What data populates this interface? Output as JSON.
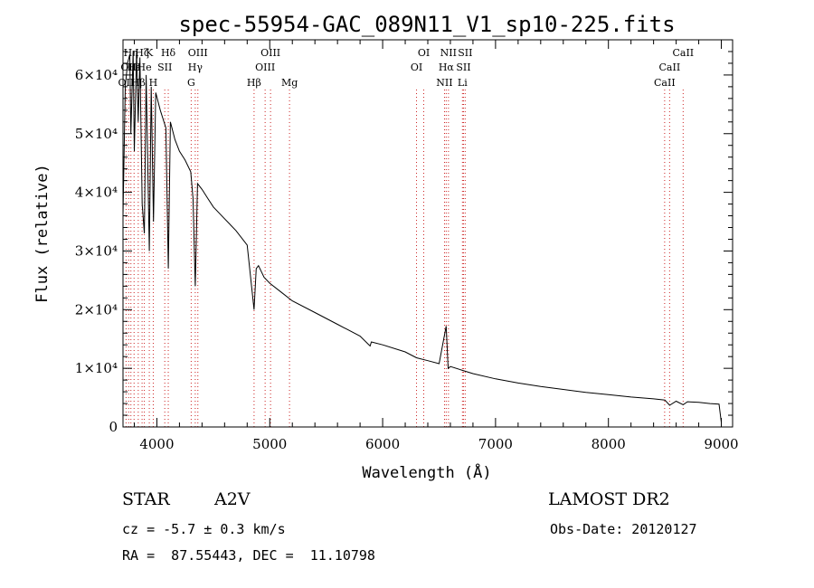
{
  "chart_data": {
    "type": "line",
    "title": "spec-55954-GAC_089N11_V1_sp10-225.fits",
    "xlabel": "Wavelength (Å)",
    "ylabel": "Flux (relative)",
    "xlim": [
      3700,
      9100
    ],
    "ylim": [
      0,
      66000
    ],
    "x_ticks": [
      4000,
      5000,
      6000,
      7000,
      8000,
      9000
    ],
    "y_ticks": [
      {
        "value": 0,
        "label": "0"
      },
      {
        "value": 10000,
        "label": "1×10⁴"
      },
      {
        "value": 20000,
        "label": "2×10⁴"
      },
      {
        "value": 30000,
        "label": "3×10⁴"
      },
      {
        "value": 40000,
        "label": "4×10⁴"
      },
      {
        "value": 50000,
        "label": "5×10⁴"
      },
      {
        "value": 60000,
        "label": "6×10⁴"
      }
    ],
    "grid": false,
    "series": [
      {
        "x": [
          3700,
          3720,
          3740,
          3760,
          3770,
          3790,
          3800,
          3820,
          3835,
          3850,
          3870,
          3889,
          3905,
          3933,
          3950,
          3970,
          3990,
          4030,
          4080,
          4101,
          4120,
          4160,
          4200,
          4250,
          4300,
          4320,
          4340,
          4360,
          4400,
          4450,
          4500,
          4600,
          4700,
          4800,
          4861,
          4880,
          4900,
          4950,
          5000,
          5100,
          5200,
          5400,
          5600,
          5800,
          5889,
          5900,
          6000,
          6200,
          6300,
          6400,
          6500,
          6563,
          6580,
          6600,
          6700,
          6800,
          7000,
          7200,
          7400,
          7600,
          7800,
          8000,
          8200,
          8400,
          8500,
          8542,
          8600,
          8662,
          8700,
          8800,
          8900,
          8980,
          9000
        ],
        "y": [
          36000,
          58000,
          62000,
          63500,
          50000,
          64000,
          47000,
          64000,
          52000,
          63000,
          38000,
          33000,
          60000,
          30000,
          58000,
          35000,
          57000,
          54000,
          51000,
          27000,
          52000,
          49000,
          47000,
          45500,
          43500,
          39000,
          24000,
          41500,
          40500,
          39000,
          37500,
          35500,
          33500,
          31000,
          20000,
          27000,
          27500,
          25500,
          24500,
          23000,
          21500,
          19500,
          17500,
          15500,
          13800,
          14500,
          14000,
          12800,
          11800,
          11300,
          10800,
          17200,
          10000,
          10300,
          9700,
          9100,
          8200,
          7500,
          6900,
          6400,
          5900,
          5500,
          5100,
          4800,
          4600,
          3700,
          4400,
          3800,
          4300,
          4200,
          4000,
          3900,
          800
        ]
      }
    ],
    "line_markers": [
      {
        "wave": 3727,
        "label": "OII",
        "row": 3
      },
      {
        "wave": 3750,
        "label": "OII",
        "row": 2
      },
      {
        "wave": 3770,
        "label": "Hη",
        "row": 1
      },
      {
        "wave": 3798,
        "label": "Hε",
        "row": 2
      },
      {
        "wave": 3835,
        "label": "Hβ",
        "row": 3
      },
      {
        "wave": 3869,
        "label": "Hζ",
        "row": 1
      },
      {
        "wave": 3889,
        "label": "He",
        "row": 2
      },
      {
        "wave": 3933,
        "label": "K",
        "row": 1
      },
      {
        "wave": 3968,
        "label": "H",
        "row": 3
      },
      {
        "wave": 4070,
        "label": "SII",
        "row": 2
      },
      {
        "wave": 4101,
        "label": "Hδ",
        "row": 1
      },
      {
        "wave": 4304,
        "label": "G",
        "row": 3
      },
      {
        "wave": 4340,
        "label": "Hγ",
        "row": 2
      },
      {
        "wave": 4363,
        "label": "OIII",
        "row": 1
      },
      {
        "wave": 4861,
        "label": "Hβ",
        "row": 3
      },
      {
        "wave": 4959,
        "label": "OIII",
        "row": 2
      },
      {
        "wave": 5007,
        "label": "OIII",
        "row": 1
      },
      {
        "wave": 5175,
        "label": "Mg",
        "row": 3
      },
      {
        "wave": 6300,
        "label": "OI",
        "row": 2
      },
      {
        "wave": 6364,
        "label": "OI",
        "row": 1
      },
      {
        "wave": 6548,
        "label": "NII",
        "row": 3
      },
      {
        "wave": 6563,
        "label": "Hα",
        "row": 2
      },
      {
        "wave": 6583,
        "label": "NII",
        "row": 1
      },
      {
        "wave": 6707,
        "label": "Li",
        "row": 3
      },
      {
        "wave": 6716,
        "label": "SII",
        "row": 2
      },
      {
        "wave": 6731,
        "label": "SII",
        "row": 1
      },
      {
        "wave": 8498,
        "label": "CaII",
        "row": 3
      },
      {
        "wave": 8542,
        "label": "CaII",
        "row": 2
      },
      {
        "wave": 8662,
        "label": "CaII",
        "row": 1
      }
    ]
  },
  "info": {
    "class": "STAR",
    "subclass": "A2V",
    "survey": "LAMOST DR2",
    "cz": "cz = -5.7 ± 0.3 km/s",
    "obs_date": "Obs-Date: 20120127",
    "coords": "RA =  87.55443, DEC =  11.10798"
  },
  "colors": {
    "spectrum": "#000000",
    "marker": "#cc2222"
  }
}
